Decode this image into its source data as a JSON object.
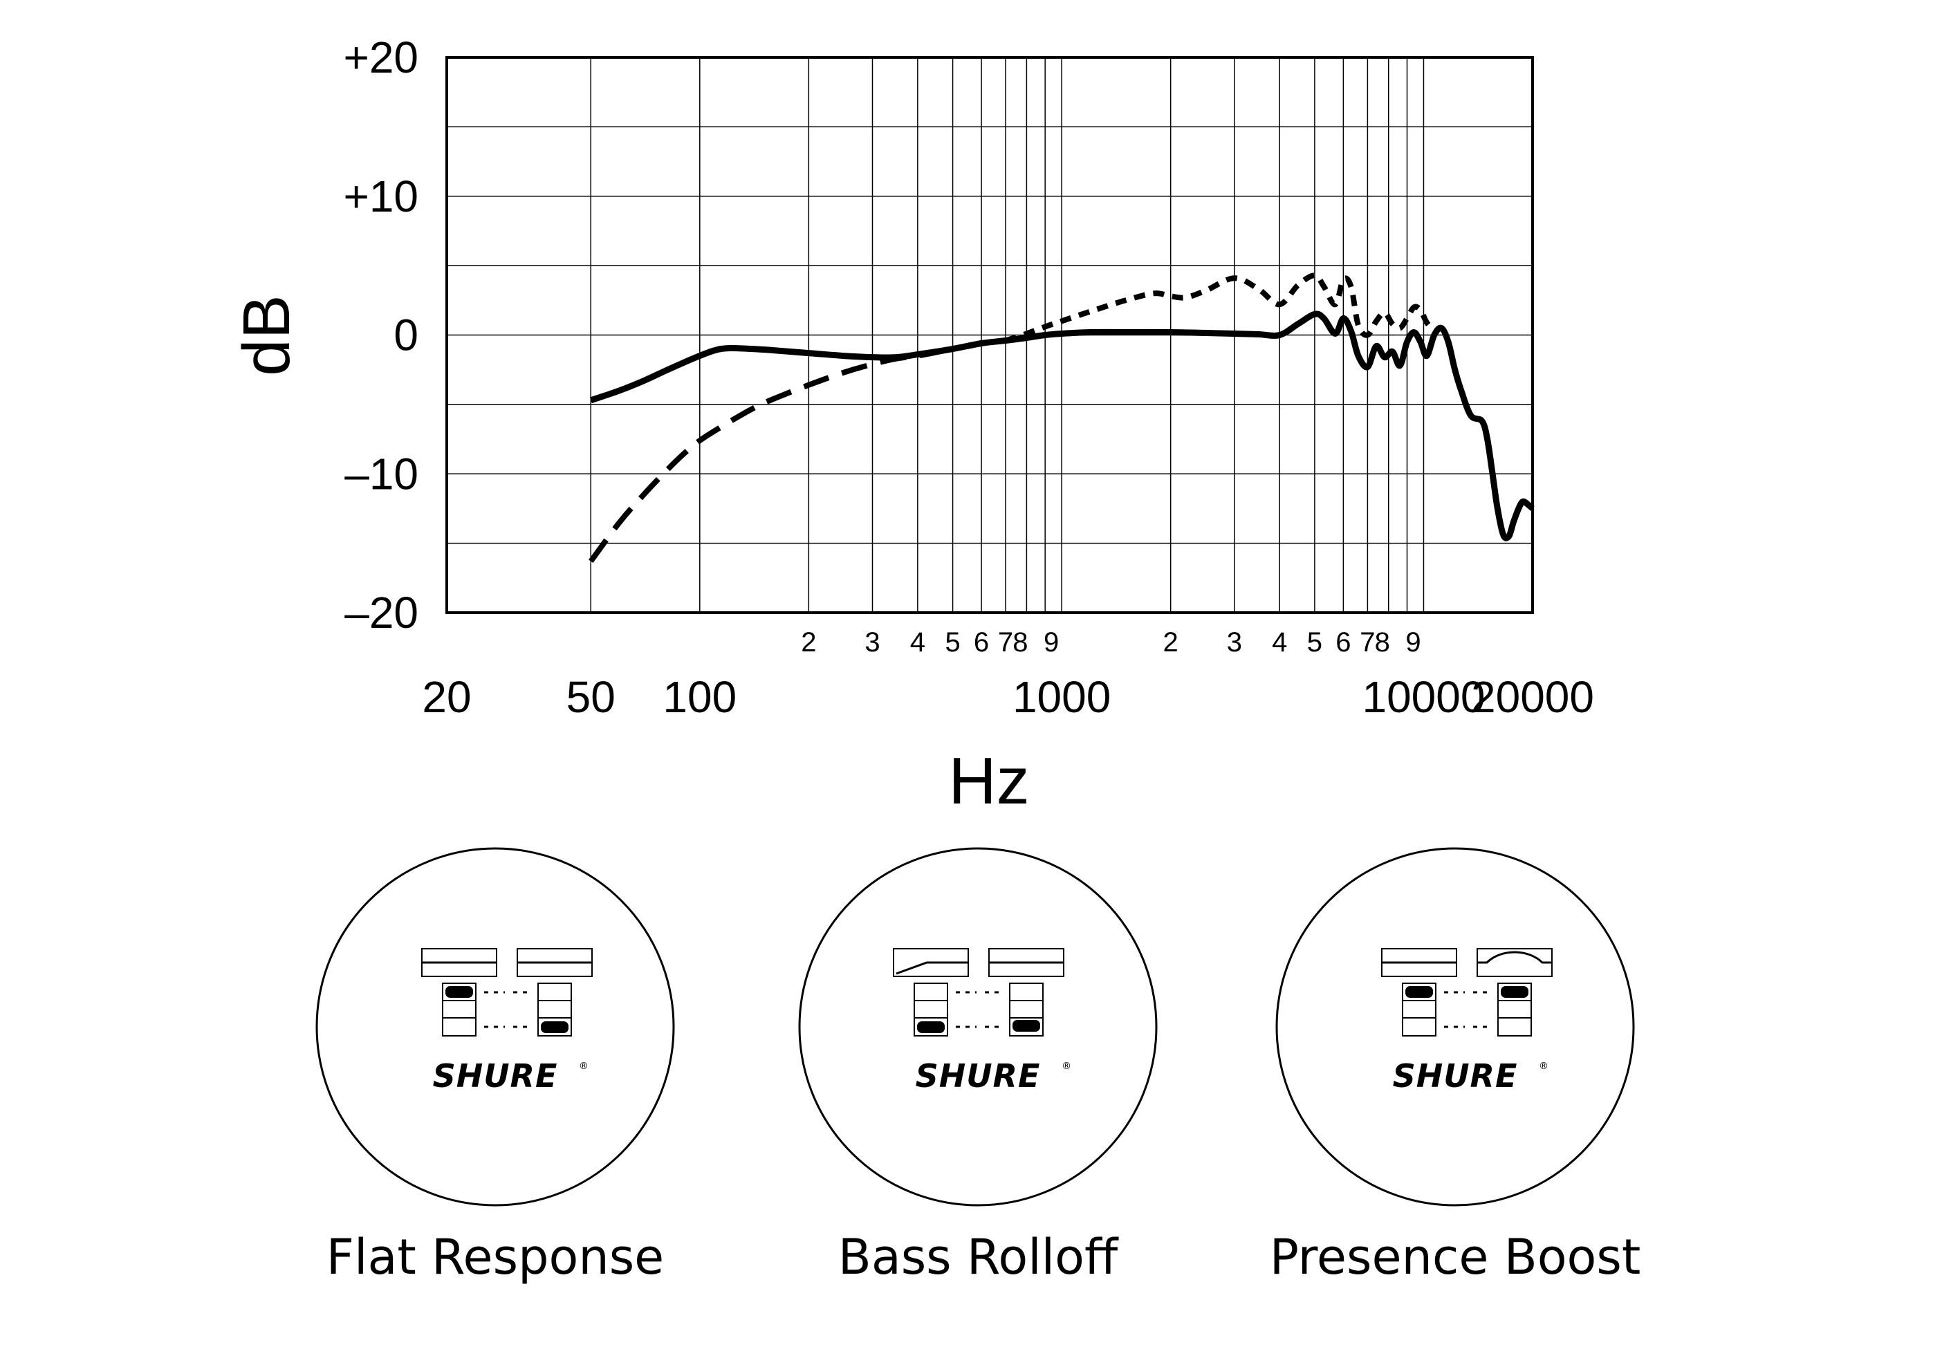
{
  "chart_data": {
    "type": "line",
    "title": "",
    "xlabel": "Hz",
    "ylabel": "dB",
    "x_scale": "log",
    "xlim": [
      20,
      20000
    ],
    "ylim": [
      -20,
      20
    ],
    "grid": true,
    "x_major_ticks": [
      {
        "value": 20,
        "label": "20"
      },
      {
        "value": 50,
        "label": "50"
      },
      {
        "value": 100,
        "label": "100"
      },
      {
        "value": 1000,
        "label": "1000"
      },
      {
        "value": 10000,
        "label": "10000"
      },
      {
        "value": 20000,
        "label": "20000"
      }
    ],
    "x_minor_ticks": [
      {
        "value": 200,
        "label": "2"
      },
      {
        "value": 300,
        "label": "3"
      },
      {
        "value": 400,
        "label": "4"
      },
      {
        "value": 500,
        "label": "5"
      },
      {
        "value": 600,
        "label": "6"
      },
      {
        "value": 700,
        "label": "7"
      },
      {
        "value": 800,
        "label": "8"
      },
      {
        "value": 900,
        "label": "9"
      },
      {
        "value": 2000,
        "label": "2"
      },
      {
        "value": 3000,
        "label": "3"
      },
      {
        "value": 4000,
        "label": "4"
      },
      {
        "value": 5000,
        "label": "5"
      },
      {
        "value": 6000,
        "label": "6"
      },
      {
        "value": 7000,
        "label": "7"
      },
      {
        "value": 8000,
        "label": "8"
      },
      {
        "value": 9000,
        "label": "9"
      }
    ],
    "y_ticks": [
      {
        "value": 20,
        "label": "+20"
      },
      {
        "value": 10,
        "label": "+10"
      },
      {
        "value": 0,
        "label": "0"
      },
      {
        "value": -10,
        "label": "–10"
      },
      {
        "value": -20,
        "label": "–20"
      }
    ],
    "series": [
      {
        "style": "solid",
        "x": [
          50,
          60,
          70,
          80,
          90,
          100,
          110,
          120,
          140,
          160,
          200,
          250,
          300,
          350,
          400,
          500,
          600,
          700,
          800,
          900,
          1000,
          1200,
          1500,
          2000,
          2500,
          3000,
          3500,
          4000,
          4500,
          5000,
          5300,
          5700,
          6000,
          6300,
          6600,
          7000,
          7400,
          7800,
          8200,
          8600,
          9000,
          9400,
          9800,
          10200,
          10700,
          11200,
          11700,
          12200,
          12700,
          13500,
          14500,
          15000,
          15500,
          16000,
          16600,
          17200,
          17700,
          18300,
          18800,
          19400,
          20000
        ],
        "y": [
          -4.7,
          -4.0,
          -3.3,
          -2.6,
          -2.0,
          -1.5,
          -1.1,
          -0.95,
          -1.0,
          -1.1,
          -1.3,
          -1.5,
          -1.6,
          -1.6,
          -1.4,
          -1.0,
          -0.6,
          -0.4,
          -0.2,
          0.0,
          0.1,
          0.2,
          0.2,
          0.2,
          0.15,
          0.1,
          0.05,
          0.0,
          0.8,
          1.5,
          1.2,
          0.1,
          1.2,
          0.3,
          -1.5,
          -2.3,
          -0.8,
          -1.6,
          -1.2,
          -2.2,
          -0.5,
          0.2,
          -0.5,
          -1.5,
          0.0,
          0.5,
          -0.5,
          -2.5,
          -4.0,
          -5.8,
          -6.2,
          -7.5,
          -10.0,
          -12.5,
          -14.4,
          -14.5,
          -13.5,
          -12.5,
          -12.0,
          -12.2,
          -12.5
        ]
      },
      {
        "style": "dashed",
        "x": [
          50,
          60,
          70,
          80,
          90,
          100,
          120,
          140,
          160,
          200,
          250,
          300,
          350,
          400,
          500,
          600,
          700,
          800,
          900,
          1000
        ],
        "y": [
          -16.3,
          -13.5,
          -11.5,
          -9.9,
          -8.6,
          -7.6,
          -6.3,
          -5.3,
          -4.6,
          -3.6,
          -2.7,
          -2.1,
          -1.7,
          -1.5,
          -1.0,
          -0.6,
          -0.4,
          -0.2,
          0.0,
          0.1
        ]
      },
      {
        "style": "dotted",
        "x": [
          700,
          800,
          900,
          1000,
          1200,
          1500,
          1800,
          2000,
          2200,
          2500,
          3000,
          3500,
          4000,
          4500,
          5000,
          5300,
          5700,
          6000,
          6300,
          6600,
          7000,
          7400,
          7800,
          8200,
          8600,
          9000,
          9400,
          9800,
          10200,
          10700
        ],
        "y": [
          -0.4,
          0.1,
          0.6,
          1.0,
          1.7,
          2.5,
          3.0,
          2.8,
          2.7,
          3.2,
          4.1,
          3.3,
          2.2,
          3.6,
          4.3,
          3.5,
          2.2,
          4.0,
          3.5,
          0.7,
          0.0,
          1.0,
          1.6,
          0.8,
          0.5,
          1.2,
          2.0,
          1.8,
          0.9,
          0.3
        ]
      }
    ]
  },
  "settings": [
    {
      "label": "Flat Response",
      "brand": "SHURE",
      "reg": "®"
    },
    {
      "label": "Bass Rolloff",
      "brand": "SHURE",
      "reg": "®"
    },
    {
      "label": "Presence Boost",
      "brand": "SHURE",
      "reg": "®"
    }
  ]
}
